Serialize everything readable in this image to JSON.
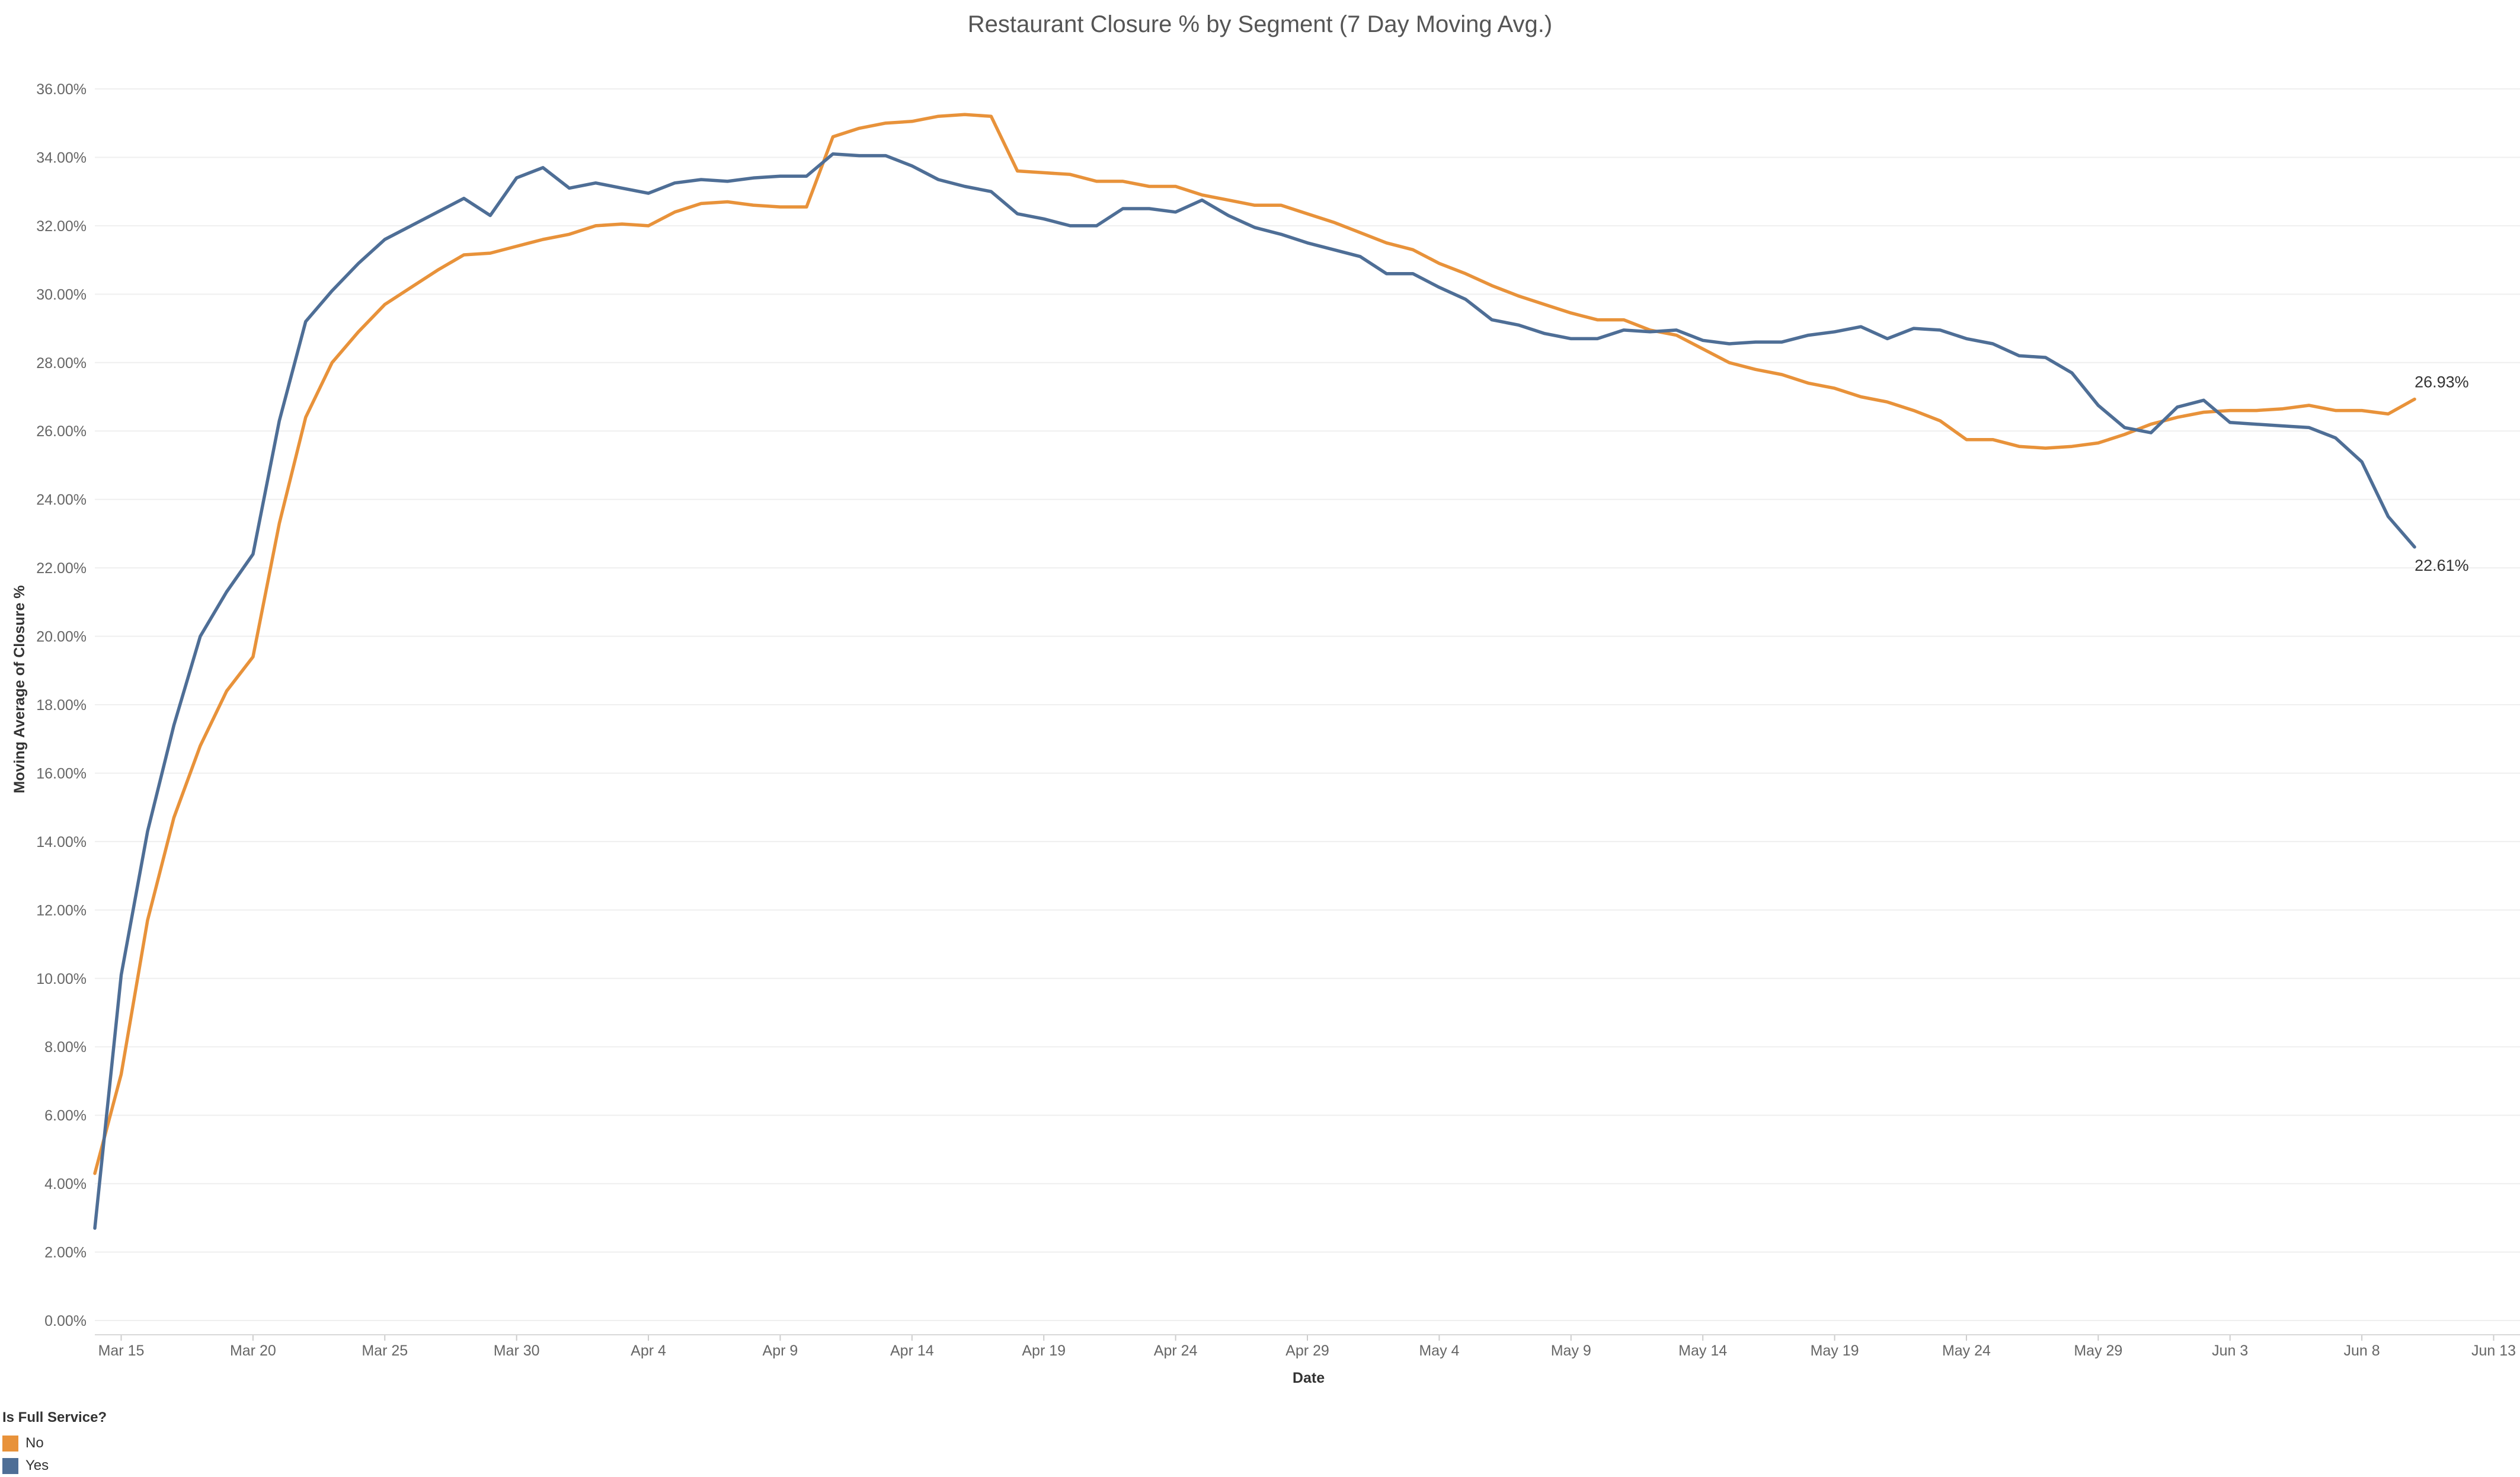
{
  "chart_data": {
    "type": "line",
    "title": "Restaurant Closure % by Segment (7 Day Moving Avg.)",
    "xlabel": "Date",
    "ylabel": "Moving Average of Closure %",
    "ylim": [
      0,
      36
    ],
    "yticks": [
      "0.00%",
      "2.00%",
      "4.00%",
      "6.00%",
      "8.00%",
      "10.00%",
      "12.00%",
      "14.00%",
      "16.00%",
      "18.00%",
      "20.00%",
      "22.00%",
      "24.00%",
      "26.00%",
      "28.00%",
      "30.00%",
      "32.00%",
      "34.00%",
      "36.00%"
    ],
    "xlim": [
      "2020-03-14",
      "2020-06-14"
    ],
    "xticks": [
      {
        "date": "2020-03-15",
        "label": "Mar 15"
      },
      {
        "date": "2020-03-20",
        "label": "Mar 20"
      },
      {
        "date": "2020-03-25",
        "label": "Mar 25"
      },
      {
        "date": "2020-03-30",
        "label": "Mar 30"
      },
      {
        "date": "2020-04-04",
        "label": "Apr 4"
      },
      {
        "date": "2020-04-09",
        "label": "Apr 9"
      },
      {
        "date": "2020-04-14",
        "label": "Apr 14"
      },
      {
        "date": "2020-04-19",
        "label": "Apr 19"
      },
      {
        "date": "2020-04-24",
        "label": "Apr 24"
      },
      {
        "date": "2020-04-29",
        "label": "Apr 29"
      },
      {
        "date": "2020-05-04",
        "label": "May 4"
      },
      {
        "date": "2020-05-09",
        "label": "May 9"
      },
      {
        "date": "2020-05-14",
        "label": "May 14"
      },
      {
        "date": "2020-05-19",
        "label": "May 19"
      },
      {
        "date": "2020-05-24",
        "label": "May 24"
      },
      {
        "date": "2020-05-29",
        "label": "May 29"
      },
      {
        "date": "2020-06-03",
        "label": "Jun 3"
      },
      {
        "date": "2020-06-08",
        "label": "Jun 8"
      },
      {
        "date": "2020-06-13",
        "label": "Jun 13"
      }
    ],
    "x_start": "2020-03-14",
    "x_step_days": 1,
    "grid": true,
    "legend_title": "Is Full Service?",
    "legend_position": "bottom-left",
    "series": [
      {
        "name": "No",
        "color": "#E8923A",
        "end_label": "26.93%",
        "values": [
          4.3,
          7.2,
          11.7,
          14.7,
          16.8,
          18.4,
          19.4,
          23.3,
          26.4,
          28.0,
          28.9,
          29.7,
          30.2,
          30.7,
          31.15,
          31.2,
          31.4,
          31.6,
          31.75,
          32.0,
          32.05,
          32.0,
          32.4,
          32.65,
          32.7,
          32.6,
          32.55,
          32.55,
          34.6,
          34.85,
          35.0,
          35.05,
          35.2,
          35.25,
          35.2,
          33.6,
          33.55,
          33.5,
          33.3,
          33.3,
          33.15,
          33.15,
          32.9,
          32.75,
          32.6,
          32.6,
          32.35,
          32.1,
          31.8,
          31.5,
          31.3,
          30.9,
          30.6,
          30.25,
          29.95,
          29.7,
          29.45,
          29.25,
          29.25,
          28.95,
          28.8,
          28.4,
          28.0,
          27.8,
          27.65,
          27.4,
          27.25,
          27.0,
          26.85,
          26.6,
          26.3,
          25.75,
          25.75,
          25.55,
          25.5,
          25.55,
          25.65,
          25.9,
          26.2,
          26.4,
          26.55,
          26.6,
          26.6,
          26.65,
          26.75,
          26.6,
          26.6,
          26.5,
          26.93
        ]
      },
      {
        "name": "Yes",
        "color": "#4E6E96",
        "end_label": "22.61%",
        "values": [
          2.7,
          10.1,
          14.3,
          17.4,
          20.0,
          21.3,
          22.4,
          26.3,
          29.2,
          30.1,
          30.9,
          31.6,
          32.0,
          32.4,
          32.8,
          32.3,
          33.4,
          33.7,
          33.1,
          33.25,
          33.1,
          32.95,
          33.25,
          33.35,
          33.3,
          33.4,
          33.45,
          33.45,
          34.1,
          34.05,
          34.05,
          33.75,
          33.35,
          33.15,
          33.0,
          32.35,
          32.2,
          32.0,
          32.0,
          32.5,
          32.5,
          32.4,
          32.75,
          32.3,
          31.95,
          31.75,
          31.5,
          31.3,
          31.1,
          30.6,
          30.6,
          30.2,
          29.85,
          29.25,
          29.1,
          28.85,
          28.7,
          28.7,
          28.95,
          28.9,
          28.95,
          28.65,
          28.55,
          28.6,
          28.6,
          28.8,
          28.9,
          29.05,
          28.7,
          29.0,
          28.95,
          28.7,
          28.55,
          28.2,
          28.15,
          27.7,
          26.75,
          26.1,
          25.95,
          26.7,
          26.9,
          26.25,
          26.2,
          26.15,
          26.1,
          25.8,
          25.1,
          23.5,
          22.61
        ]
      }
    ]
  }
}
